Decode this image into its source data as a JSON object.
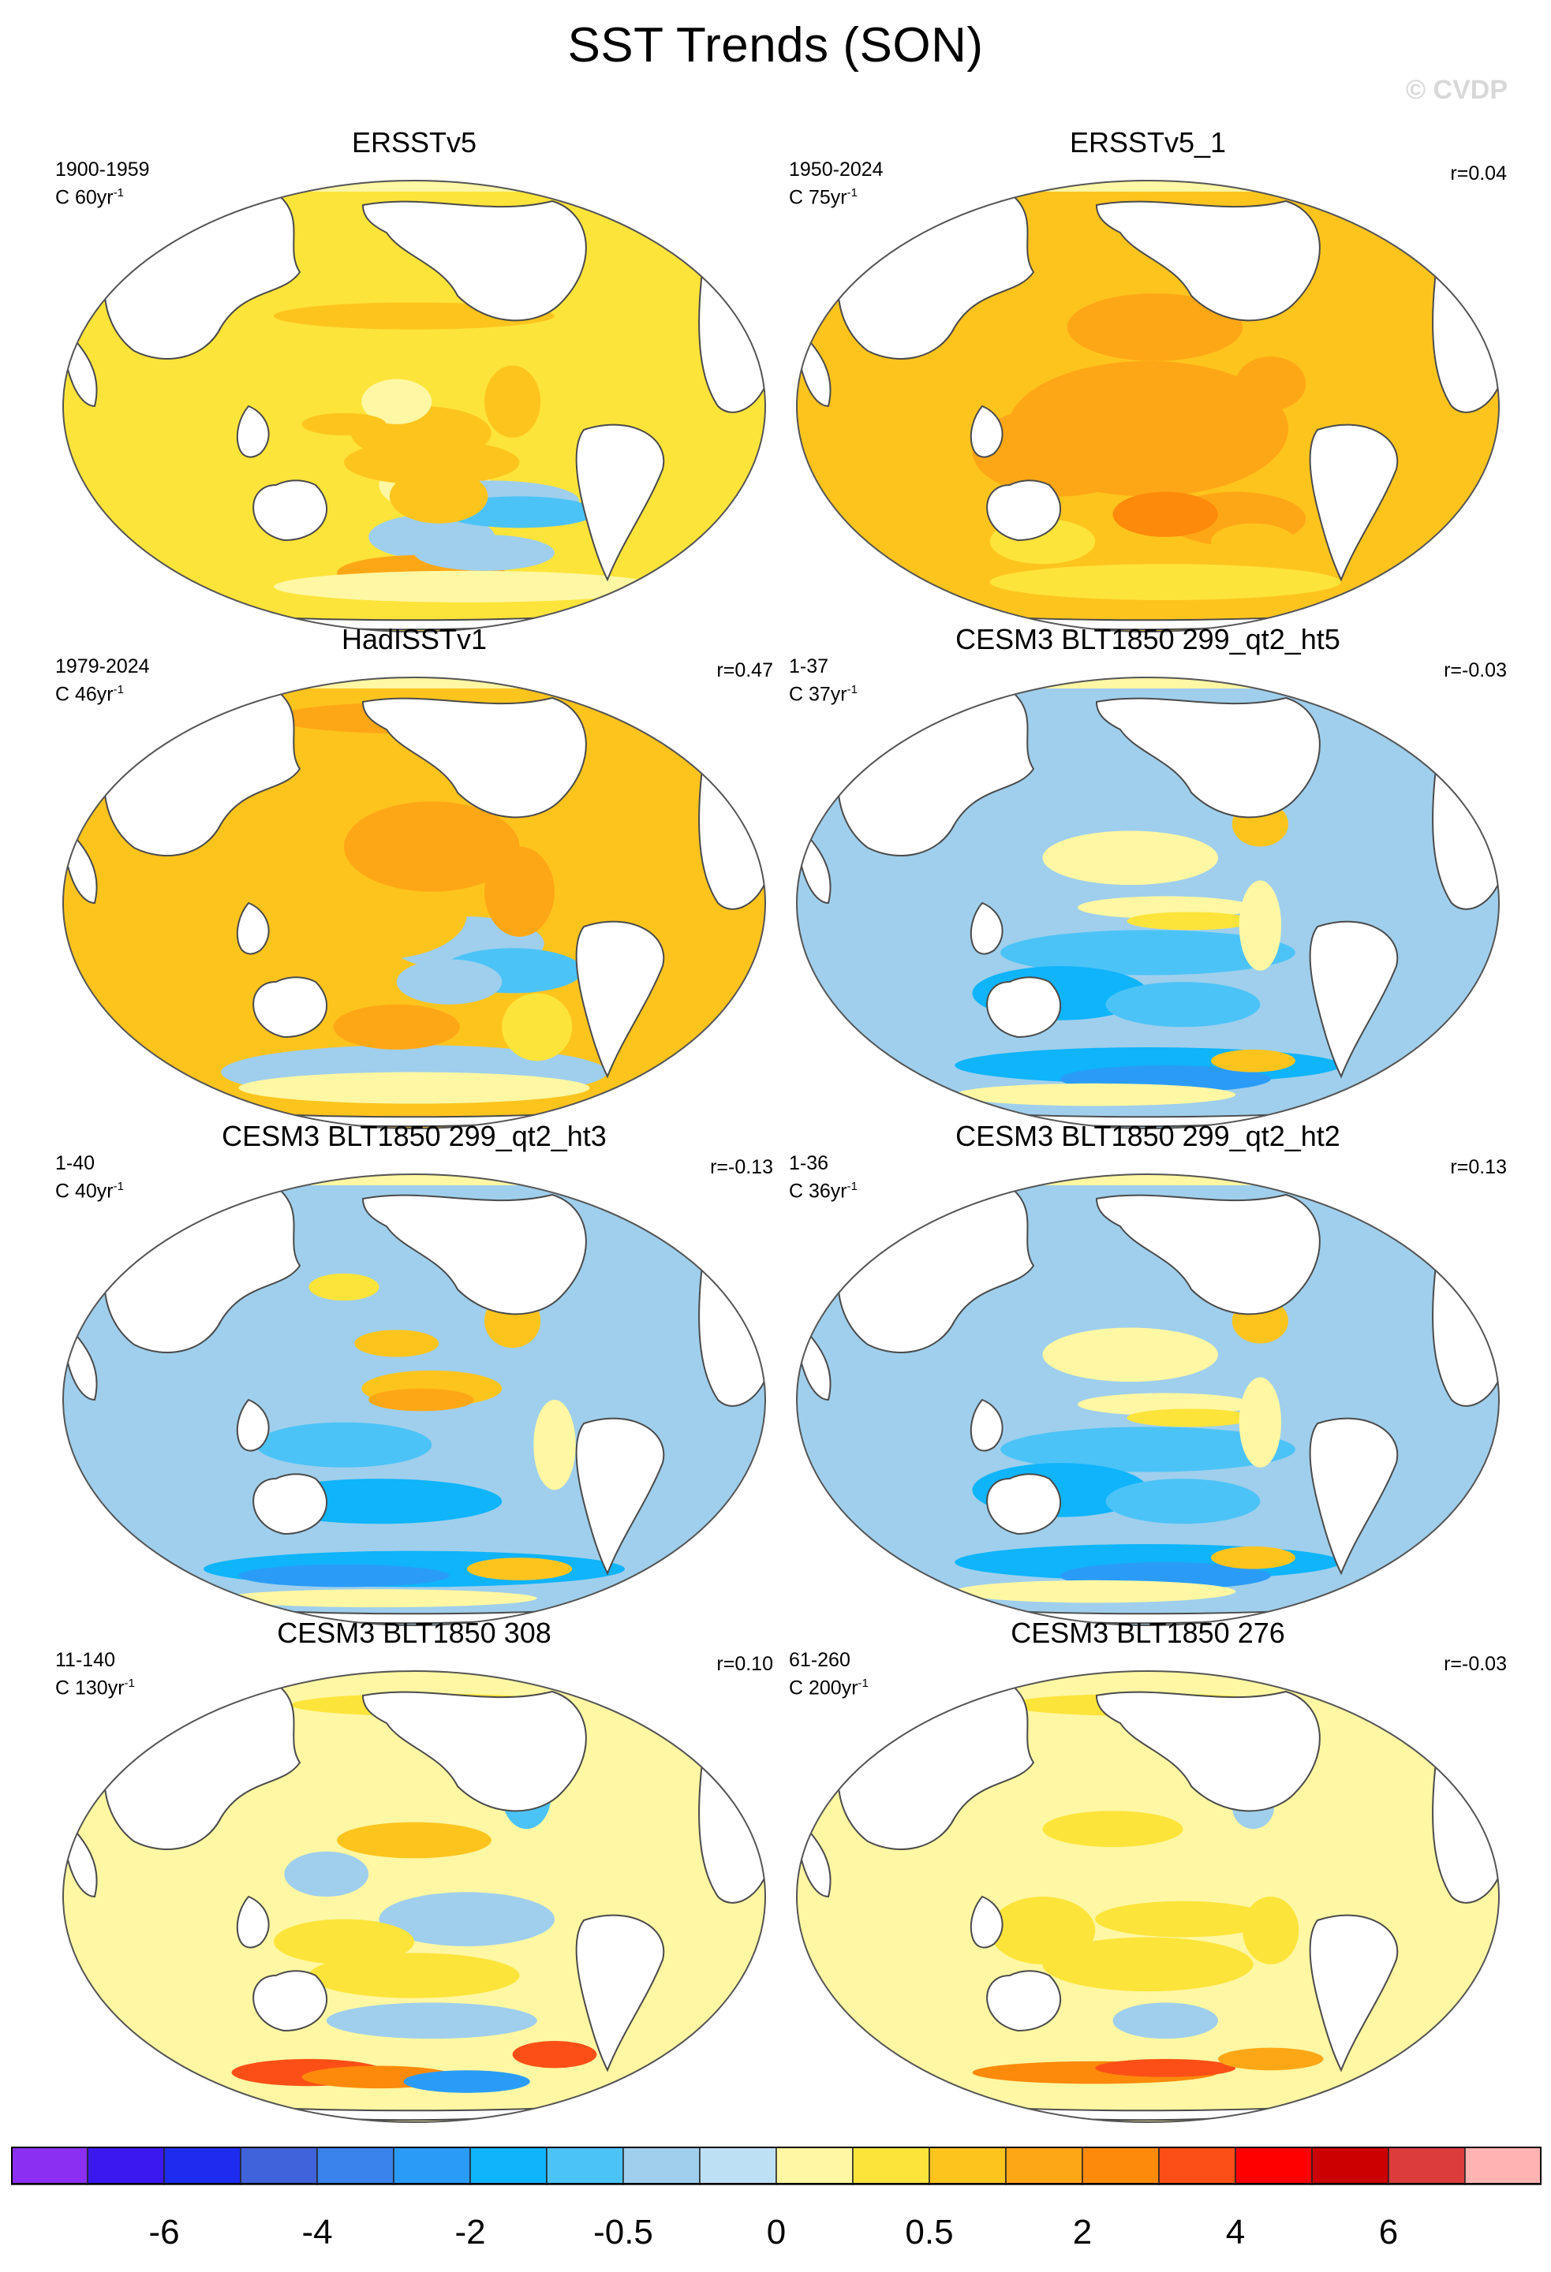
{
  "title": "SST Trends (SON)",
  "watermark": "© CVDP",
  "panels": [
    {
      "title": "ERSSTv5",
      "period": "1900-1959",
      "units": "C 60yr",
      "units_sup": "-1",
      "corr": "",
      "pattern": "warm_cool_tropics"
    },
    {
      "title": "ERSSTv5_1",
      "period": "1950-2024",
      "units": "C 75yr",
      "units_sup": "-1",
      "corr": "r=0.04",
      "pattern": "strong_warm"
    },
    {
      "title": "HadISSTv1",
      "period": "1979-2024",
      "units": "C 46yr",
      "units_sup": "-1",
      "corr": "r=0.47",
      "pattern": "warm_cool_east_pacific"
    },
    {
      "title": "CESM3 BLT1850 299_qt2_ht5",
      "period": "1-37",
      "units": "C 37yr",
      "units_sup": "-1",
      "corr": "r=-0.03",
      "pattern": "cool_mixed"
    },
    {
      "title": "CESM3 BLT1850 299_qt2_ht3",
      "period": "1-40",
      "units": "C 40yr",
      "units_sup": "-1",
      "corr": "r=-0.13",
      "pattern": "cool_warm_band"
    },
    {
      "title": "CESM3 BLT1850 299_qt2_ht2",
      "period": "1-36",
      "units": "C 36yr",
      "units_sup": "-1",
      "corr": "r=0.13",
      "pattern": "cool_mixed"
    },
    {
      "title": "CESM3 BLT1850 308",
      "period": "11-140",
      "units": "C 130yr",
      "units_sup": "-1",
      "corr": "r=0.10",
      "pattern": "mixed_southern_warm"
    },
    {
      "title": "CESM3 BLT1850 276",
      "period": "61-260",
      "units": "C 200yr",
      "units_sup": "-1",
      "corr": "r=-0.03",
      "pattern": "warm_southern_red"
    }
  ],
  "colorbar": {
    "colors": [
      "#8b2ff2",
      "#3b17f0",
      "#1e2cf0",
      "#4062da",
      "#3a83ec",
      "#2a9cf7",
      "#0fb4fb",
      "#4cc3f7",
      "#9fcfec",
      "#bee0f5",
      "#fff7a3",
      "#fde43a",
      "#fec41e",
      "#fea716",
      "#fd8a0b",
      "#fc4f17",
      "#fe0000",
      "#cc0000",
      "#dc3c3c",
      "#ffb3b3"
    ],
    "labels": [
      "-6",
      "-4",
      "-2",
      "-0.5",
      "0",
      "0.5",
      "2",
      "4",
      "6"
    ]
  }
}
